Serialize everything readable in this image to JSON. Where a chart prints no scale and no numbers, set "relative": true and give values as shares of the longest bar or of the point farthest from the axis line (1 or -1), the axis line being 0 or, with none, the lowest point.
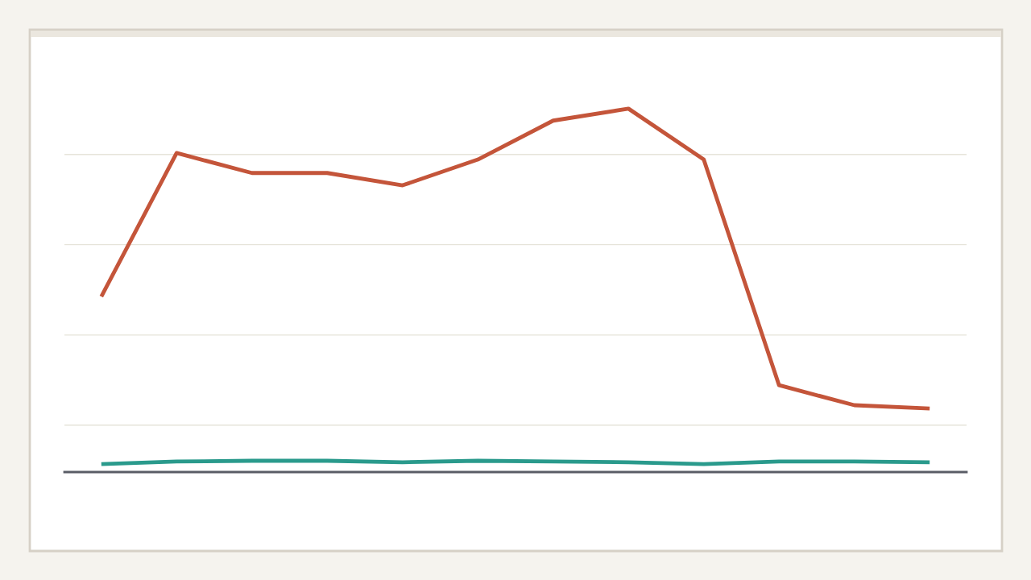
{
  "chart_data": {
    "type": "line",
    "relative": true,
    "grid": "y",
    "legend": false,
    "marker": "none",
    "line_style": "solid",
    "categories": [
      null,
      null,
      null,
      null,
      null,
      null,
      null,
      null,
      null,
      null,
      null,
      null
    ],
    "series": [
      {
        "color": "#c4553a",
        "values": [
          0.483,
          0.878,
          0.823,
          0.823,
          0.789,
          0.86,
          0.967,
          1,
          0.86,
          0.239,
          0.184,
          0.175
        ]
      },
      {
        "color": "#2a9a8c",
        "values": [
          0.022,
          0.029,
          0.031,
          0.031,
          0.027,
          0.031,
          0.029,
          0.027,
          0.022,
          0.029,
          0.029,
          0.027
        ]
      }
    ]
  }
}
